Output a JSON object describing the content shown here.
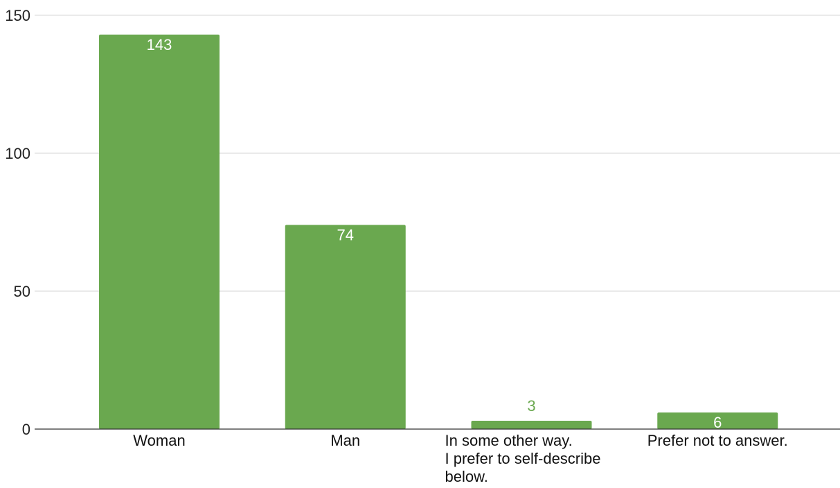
{
  "chart_data": {
    "type": "bar",
    "categories": [
      [
        "Woman"
      ],
      [
        "Man"
      ],
      [
        "In some other way.",
        "I prefer to self-describe",
        "below."
      ],
      [
        "Prefer not to answer."
      ]
    ],
    "values": [
      143,
      74,
      3,
      6
    ],
    "title": "",
    "xlabel": "",
    "ylabel": "",
    "ylim": [
      0,
      150
    ],
    "yticks": [
      "0",
      "50",
      "100",
      "150"
    ],
    "grid": true,
    "bar_color": "#6aa84f",
    "label_inside_color": "#ffffff",
    "label_outside_color": "#6aa84f"
  }
}
